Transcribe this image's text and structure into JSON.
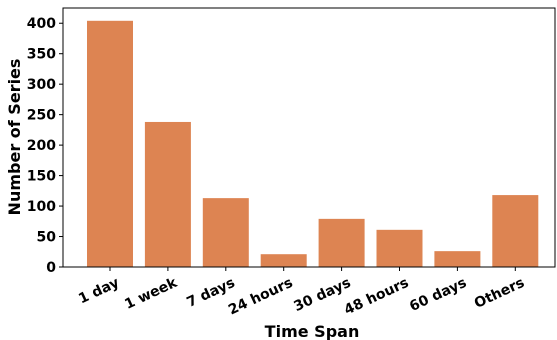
{
  "chart_data": {
    "type": "bar",
    "xlabel": "Time Span",
    "ylabel": "Number of Series",
    "categories": [
      "1 day",
      "1 week",
      "7 days",
      "24 hours",
      "30 days",
      "48 hours",
      "60 days",
      "Others"
    ],
    "values": [
      404,
      238,
      113,
      21,
      79,
      61,
      26,
      118
    ],
    "ylim": [
      0,
      425
    ],
    "yticks": [
      "0",
      "50",
      "100",
      "150",
      "200",
      "250",
      "300",
      "350",
      "400"
    ],
    "bar_color": "#dd8452",
    "grid": false,
    "legend": "none"
  }
}
